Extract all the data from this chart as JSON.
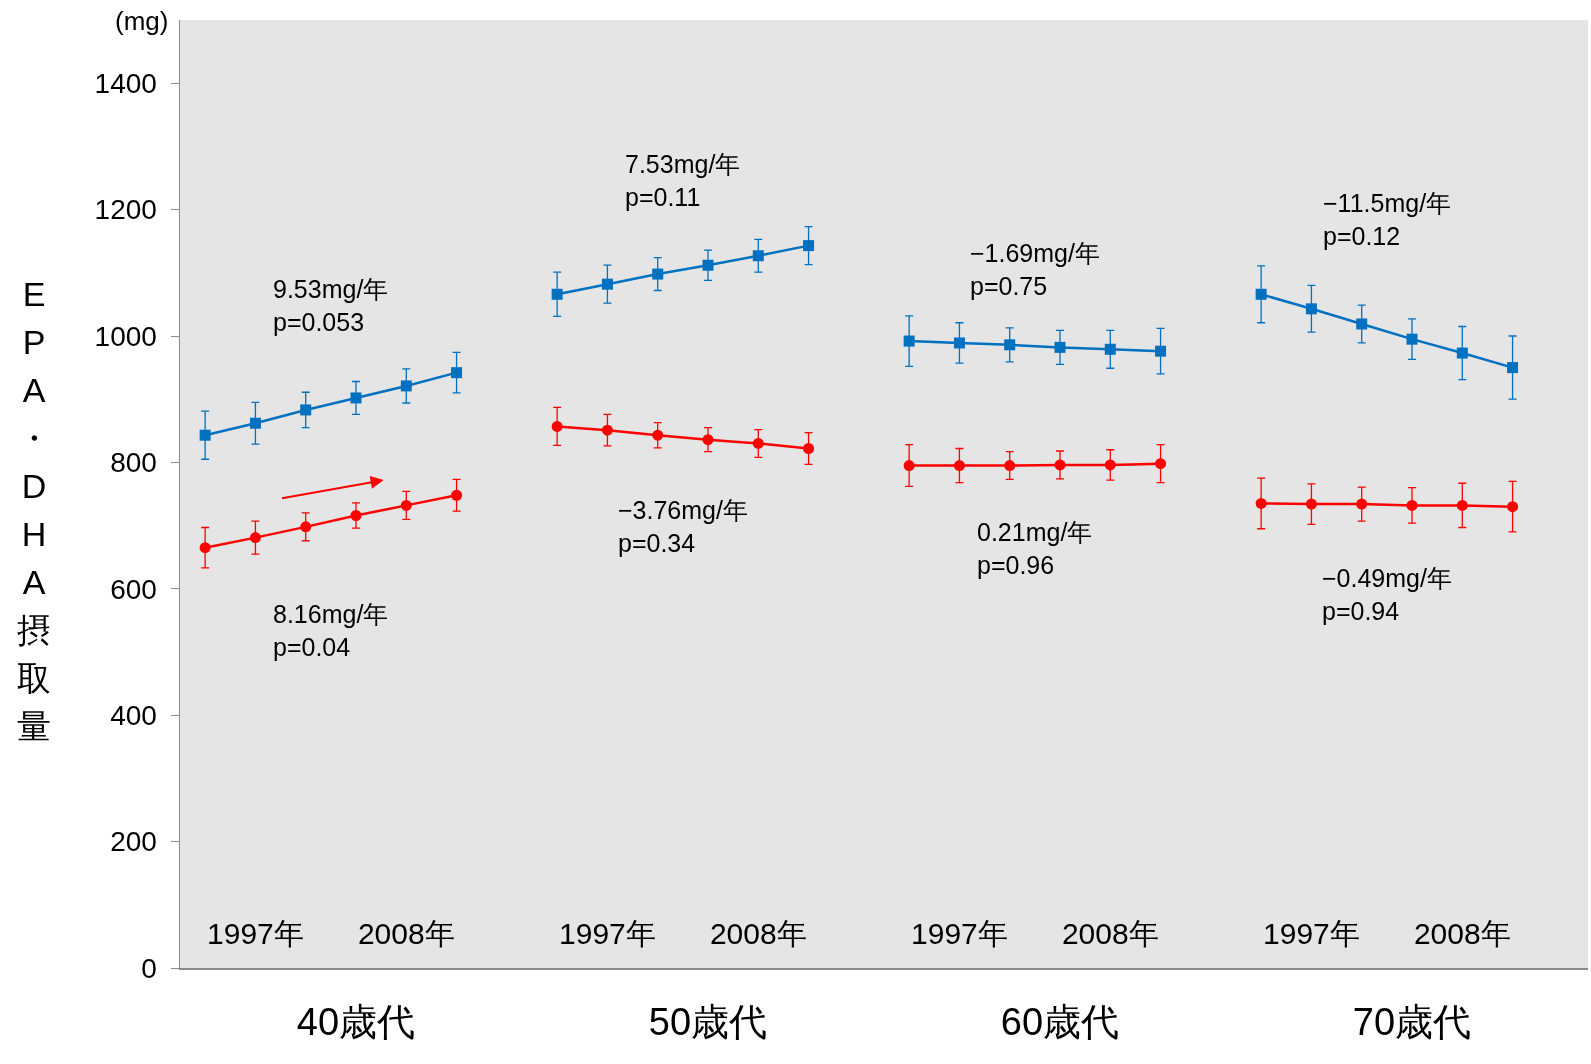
{
  "chart_data": [
    {
      "type": "line",
      "xlabel": "40歳代",
      "ylabel": "EPA・DHA摂取量",
      "categories": [
        null,
        "1997年",
        null,
        null,
        "2008年",
        null
      ],
      "ylim": [
        0,
        1500
      ],
      "yticks": [
        0,
        200,
        400,
        600,
        800,
        1000,
        1200,
        1400
      ],
      "series": [
        {
          "color": "#0070c0",
          "marker": "square",
          "values": [
            843,
            862,
            883,
            902,
            921,
            942
          ],
          "errors": [
            38,
            33,
            28,
            26,
            27,
            32
          ]
        },
        {
          "color": "#ff0000",
          "marker": "circle",
          "values": [
            665,
            681,
            698,
            716,
            732,
            748
          ],
          "errors": [
            32,
            26,
            22,
            20,
            22,
            25
          ]
        }
      ],
      "annotations": [
        "(mg)",
        "9.53mg/年\np=0.053",
        "8.16mg/年\np=0.04"
      ]
    },
    {
      "type": "line",
      "xlabel": "50歳代",
      "categories": [
        null,
        "1997年",
        null,
        null,
        "2008年",
        null
      ],
      "ylim": [
        0,
        1500
      ],
      "yticks": [
        0,
        200,
        400,
        600,
        800,
        1000,
        1200,
        1400
      ],
      "tick_labels": "x",
      "series": [
        {
          "color": "#0070c0",
          "marker": "square",
          "values": [
            1066,
            1082,
            1098,
            1112,
            1127,
            1143
          ],
          "errors": [
            35,
            30,
            26,
            24,
            26,
            30
          ]
        },
        {
          "color": "#ff0000",
          "marker": "circle",
          "values": [
            857,
            851,
            843,
            836,
            830,
            822
          ],
          "errors": [
            30,
            25,
            20,
            19,
            22,
            25
          ]
        }
      ],
      "annotations": [
        "7.53mg/年\np=0.11",
        "−3.76mg/年\np=0.34"
      ]
    },
    {
      "type": "line",
      "xlabel": "60歳代",
      "categories": [
        null,
        "1997年",
        null,
        null,
        "2008年",
        null
      ],
      "ylim": [
        0,
        1500
      ],
      "yticks": [
        0,
        200,
        400,
        600,
        800,
        1000,
        1200,
        1400
      ],
      "tick_labels": "x",
      "series": [
        {
          "color": "#0070c0",
          "marker": "square",
          "values": [
            992,
            989,
            986,
            982,
            979,
            976
          ],
          "errors": [
            40,
            32,
            27,
            27,
            30,
            36
          ]
        },
        {
          "color": "#ff0000",
          "marker": "circle",
          "values": [
            795,
            795,
            795,
            796,
            796,
            798
          ],
          "errors": [
            33,
            27,
            22,
            22,
            24,
            30
          ]
        }
      ],
      "annotations": [
        "−1.69mg/年\np=0.75",
        "0.21mg/年\np=0.96"
      ]
    },
    {
      "type": "line",
      "xlabel": "70歳代",
      "categories": [
        null,
        "1997年",
        null,
        null,
        "2008年",
        null
      ],
      "ylim": [
        0,
        1500
      ],
      "yticks": [
        0,
        200,
        400,
        600,
        800,
        1000,
        1200,
        1400
      ],
      "tick_labels": "x",
      "series": [
        {
          "color": "#0070c0",
          "marker": "square",
          "values": [
            1066,
            1043,
            1019,
            995,
            973,
            950
          ],
          "errors": [
            45,
            37,
            30,
            32,
            42,
            50
          ]
        },
        {
          "color": "#ff0000",
          "marker": "circle",
          "values": [
            735,
            734,
            734,
            732,
            732,
            730
          ],
          "errors": [
            40,
            32,
            27,
            28,
            35,
            40
          ]
        }
      ],
      "annotations": [
        "−11.5mg/年\np=0.12",
        "−0.49mg/年\np=0.94"
      ]
    }
  ]
}
